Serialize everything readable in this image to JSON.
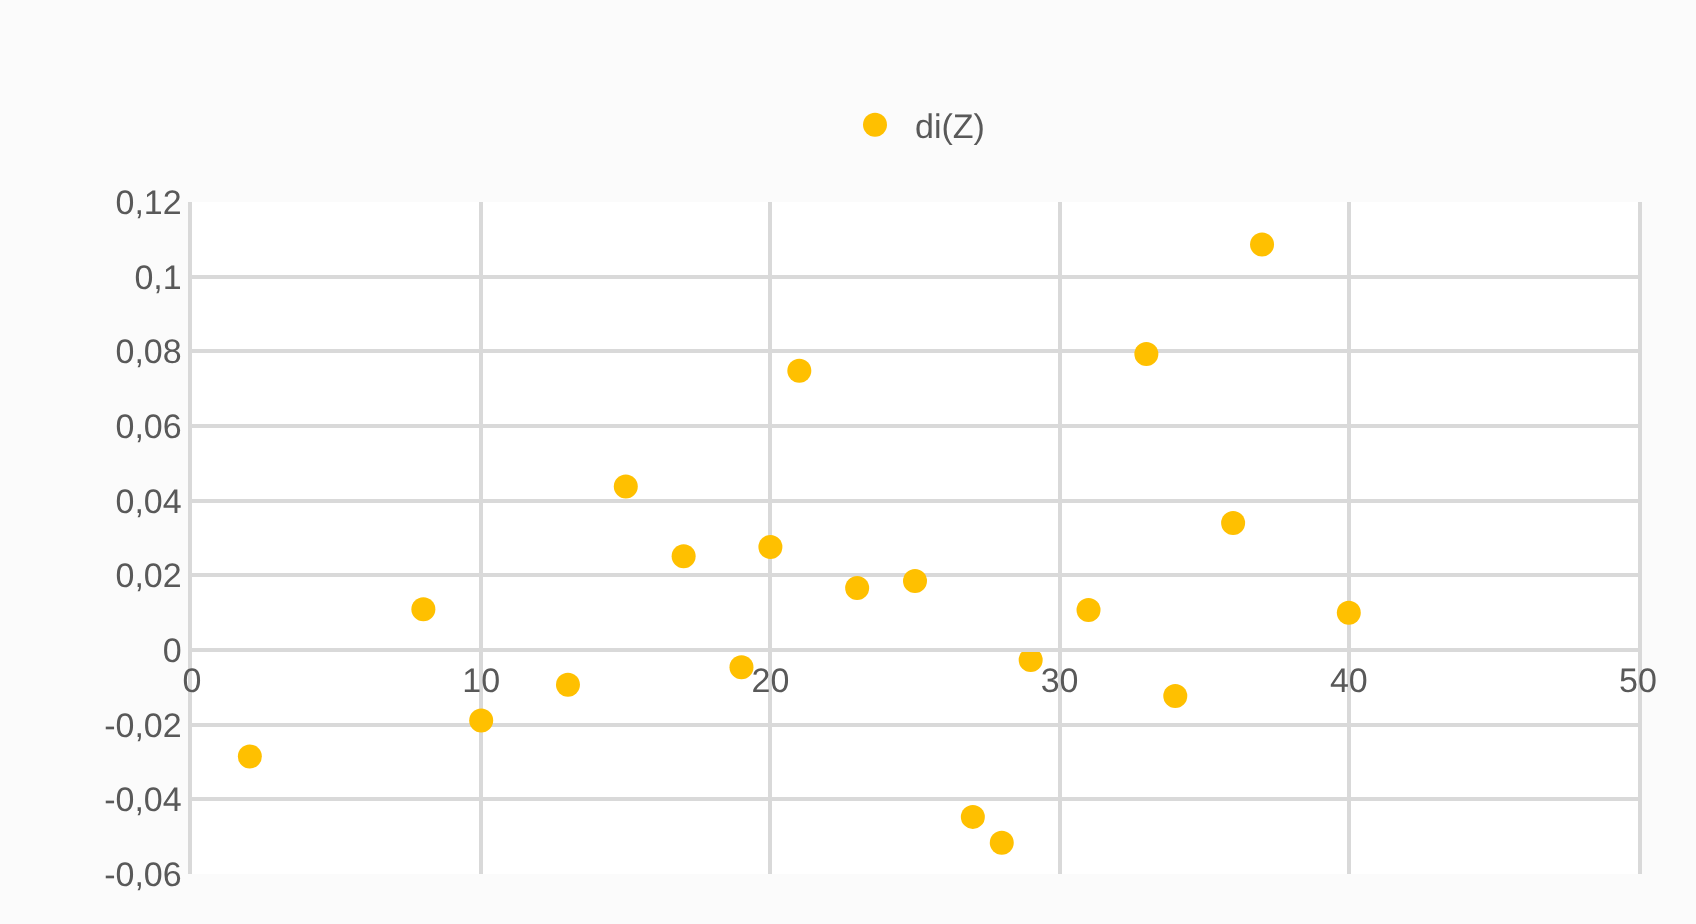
{
  "chart_data": {
    "type": "scatter",
    "legend": "top",
    "grid": true,
    "marker": "circle",
    "xlim": [
      0,
      50
    ],
    "xticks": [
      0,
      10,
      20,
      30,
      40,
      50
    ],
    "ylim": [
      -0.06,
      0.12
    ],
    "yticks": [
      {
        "value": -0.06,
        "label": "-0,06"
      },
      {
        "value": -0.04,
        "label": "-0,04"
      },
      {
        "value": -0.02,
        "label": "-0,02"
      },
      {
        "value": 0,
        "label": "0"
      },
      {
        "value": 0.02,
        "label": "0,02"
      },
      {
        "value": 0.04,
        "label": "0,04"
      },
      {
        "value": 0.06,
        "label": "0,06"
      },
      {
        "value": 0.08,
        "label": "0,08"
      },
      {
        "value": 0.1,
        "label": "0,1"
      },
      {
        "value": 0.12,
        "label": "0,12"
      }
    ],
    "x": [
      2,
      8,
      10,
      13,
      15,
      17,
      19,
      20,
      21,
      23,
      25,
      27,
      28,
      29,
      31,
      33,
      34,
      36,
      37,
      40
    ],
    "series": [
      {
        "name": "di(Z)",
        "color": "#ffc000",
        "values": [
          -0.0285,
          0.0109,
          -0.0189,
          -0.0093,
          0.0438,
          0.0251,
          -0.0046,
          0.0276,
          0.0748,
          0.0166,
          0.0185,
          -0.0447,
          -0.0516,
          -0.0027,
          0.0107,
          0.0793,
          -0.0123,
          0.034,
          0.1086,
          0.01
        ]
      }
    ]
  }
}
